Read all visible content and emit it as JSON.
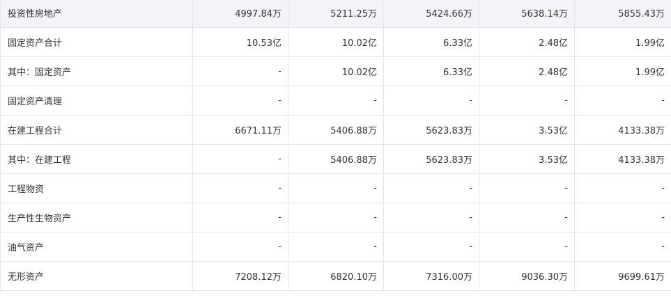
{
  "table": {
    "rows": [
      {
        "label": "投资性房地产",
        "values": [
          "4997.84万",
          "5211.25万",
          "5424.66万",
          "5638.14万",
          "5855.43万"
        ]
      },
      {
        "label": "固定资产合计",
        "values": [
          "10.53亿",
          "10.02亿",
          "6.33亿",
          "2.48亿",
          "1.99亿"
        ]
      },
      {
        "label": "其中：固定资产",
        "values": [
          "-",
          "10.02亿",
          "6.33亿",
          "2.48亿",
          "1.99亿"
        ]
      },
      {
        "label": "固定资产清理",
        "values": [
          "-",
          "-",
          "-",
          "-",
          "-"
        ]
      },
      {
        "label": "在建工程合计",
        "values": [
          "6671.11万",
          "5406.88万",
          "5623.83万",
          "3.53亿",
          "4133.38万"
        ]
      },
      {
        "label": "其中：在建工程",
        "values": [
          "-",
          "5406.88万",
          "5623.83万",
          "3.53亿",
          "4133.38万"
        ]
      },
      {
        "label": "工程物资",
        "values": [
          "-",
          "-",
          "-",
          "-",
          "-"
        ]
      },
      {
        "label": "生产性生物资产",
        "values": [
          "-",
          "-",
          "-",
          "-",
          "-"
        ]
      },
      {
        "label": "油气资产",
        "values": [
          "-",
          "-",
          "-",
          "-",
          "-"
        ]
      },
      {
        "label": "无形资产",
        "values": [
          "7208.12万",
          "6820.10万",
          "7316.00万",
          "9036.30万",
          "9699.61万"
        ]
      }
    ]
  },
  "colors": {
    "highlight_row_bg": "#f2f4f7",
    "border": "#e3e6ea",
    "text": "#333333"
  }
}
